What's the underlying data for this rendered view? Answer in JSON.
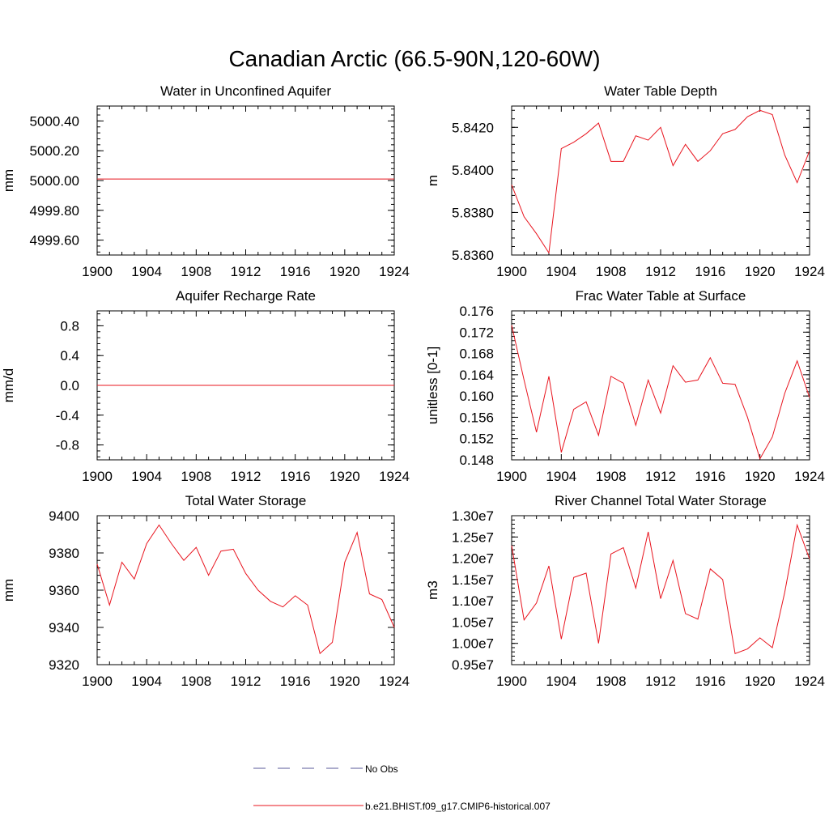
{
  "figure": {
    "title": "Canadian Arctic (66.5-90N,120-60W)"
  },
  "legend": {
    "items": [
      {
        "label": "No Obs",
        "style": "dashed",
        "color": "#5a5a9a"
      },
      {
        "label": "b.e21.BHIST.f09_g17.CMIP6-historical.007",
        "style": "solid",
        "color": "#e8141e"
      }
    ]
  },
  "chart_data": [
    {
      "type": "line",
      "title": "Water in Unconfined Aquifer",
      "ylabel": "mm",
      "xlabel": "",
      "xlim": [
        1900,
        1924
      ],
      "ylim": [
        4999.5,
        5000.5
      ],
      "xticks": [
        1900,
        1904,
        1908,
        1912,
        1916,
        1920,
        1924
      ],
      "yticks": [
        4999.6,
        4999.8,
        5000.0,
        5000.2,
        5000.4
      ],
      "ytick_labels": [
        "4999.60",
        "4999.80",
        "5000.00",
        "5000.20",
        "5000.40"
      ],
      "series": [
        {
          "x": [
            1900,
            1924
          ],
          "values": [
            5000.01,
            5000.01
          ]
        }
      ]
    },
    {
      "type": "line",
      "title": "Water Table Depth",
      "ylabel": "m",
      "xlabel": "",
      "xlim": [
        1900,
        1924
      ],
      "ylim": [
        5.836,
        5.843
      ],
      "xticks": [
        1900,
        1904,
        1908,
        1912,
        1916,
        1920,
        1924
      ],
      "yticks": [
        5.836,
        5.838,
        5.84,
        5.842
      ],
      "ytick_labels": [
        "5.8360",
        "5.8380",
        "5.8400",
        "5.8420"
      ],
      "series": [
        {
          "x": [
            1900,
            1901,
            1902,
            1903,
            1904,
            1905,
            1906,
            1907,
            1908,
            1909,
            1910,
            1911,
            1912,
            1913,
            1914,
            1915,
            1916,
            1917,
            1918,
            1919,
            1920,
            1921,
            1922,
            1923,
            1924
          ],
          "values": [
            5.8393,
            5.8378,
            5.837,
            5.8361,
            5.841,
            5.8413,
            5.8417,
            5.8422,
            5.8404,
            5.8404,
            5.8416,
            5.8414,
            5.842,
            5.8402,
            5.8412,
            5.8404,
            5.8409,
            5.8417,
            5.8419,
            5.8425,
            5.8428,
            5.8426,
            5.8407,
            5.8394,
            5.8409
          ]
        }
      ]
    },
    {
      "type": "line",
      "title": "Aquifer Recharge Rate",
      "ylabel": "mm/d",
      "xlabel": "",
      "xlim": [
        1900,
        1924
      ],
      "ylim": [
        -1.0,
        1.0
      ],
      "xticks": [
        1900,
        1904,
        1908,
        1912,
        1916,
        1920,
        1924
      ],
      "yticks": [
        -0.8,
        -0.4,
        0.0,
        0.4,
        0.8
      ],
      "ytick_labels": [
        "-0.8",
        "-0.4",
        "0.0",
        "0.4",
        "0.8"
      ],
      "series": [
        {
          "x": [
            1900,
            1924
          ],
          "values": [
            0.0,
            0.0
          ]
        }
      ]
    },
    {
      "type": "line",
      "title": "Frac Water Table at Surface",
      "ylabel": "unitless [0-1]",
      "xlabel": "",
      "xlim": [
        1900,
        1924
      ],
      "ylim": [
        0.148,
        0.176
      ],
      "xticks": [
        1900,
        1904,
        1908,
        1912,
        1916,
        1920,
        1924
      ],
      "yticks": [
        0.148,
        0.152,
        0.156,
        0.16,
        0.164,
        0.168,
        0.172,
        0.176
      ],
      "ytick_labels": [
        "0.148",
        "0.152",
        "0.156",
        "0.160",
        "0.164",
        "0.168",
        "0.172",
        "0.176"
      ],
      "series": [
        {
          "x": [
            1900,
            1901,
            1902,
            1903,
            1904,
            1905,
            1906,
            1907,
            1908,
            1909,
            1910,
            1911,
            1912,
            1913,
            1914,
            1915,
            1916,
            1917,
            1918,
            1919,
            1920,
            1921,
            1922,
            1923,
            1924
          ],
          "values": [
            0.1733,
            0.163,
            0.1532,
            0.1637,
            0.1494,
            0.1575,
            0.1589,
            0.1526,
            0.1637,
            0.1624,
            0.1545,
            0.163,
            0.1568,
            0.1657,
            0.1626,
            0.163,
            0.1672,
            0.1624,
            0.1622,
            0.156,
            0.1482,
            0.1523,
            0.1605,
            0.1666,
            0.1597
          ]
        }
      ]
    },
    {
      "type": "line",
      "title": "Total Water Storage",
      "ylabel": "mm",
      "xlabel": "",
      "xlim": [
        1900,
        1924
      ],
      "ylim": [
        9320,
        9400
      ],
      "xticks": [
        1900,
        1904,
        1908,
        1912,
        1916,
        1920,
        1924
      ],
      "yticks": [
        9320,
        9340,
        9360,
        9380,
        9400
      ],
      "ytick_labels": [
        "9320",
        "9340",
        "9360",
        "9380",
        "9400"
      ],
      "series": [
        {
          "x": [
            1900,
            1901,
            1902,
            1903,
            1904,
            1905,
            1906,
            1907,
            1908,
            1909,
            1910,
            1911,
            1912,
            1913,
            1914,
            1915,
            1916,
            1917,
            1918,
            1919,
            1920,
            1921,
            1922,
            1923,
            1924
          ],
          "values": [
            9374,
            9352,
            9375,
            9366,
            9385,
            9395,
            9385,
            9376,
            9383,
            9368,
            9381,
            9382,
            9369,
            9360,
            9354,
            9351,
            9357,
            9352,
            9326,
            9332,
            9375,
            9391,
            9358,
            9355,
            9340
          ]
        }
      ]
    },
    {
      "type": "line",
      "title": "River Channel Total Water Storage",
      "ylabel": "m3",
      "xlabel": "",
      "xlim": [
        1900,
        1924
      ],
      "ylim": [
        9500000,
        13000000
      ],
      "xticks": [
        1900,
        1904,
        1908,
        1912,
        1916,
        1920,
        1924
      ],
      "yticks": [
        9500000,
        10000000,
        10500000,
        11000000,
        11500000,
        12000000,
        12500000,
        13000000
      ],
      "ytick_labels": [
        "0.95e7",
        "1.00e7",
        "1.05e7",
        "1.10e7",
        "1.15e7",
        "1.20e7",
        "1.25e7",
        "1.30e7"
      ],
      "series": [
        {
          "x": [
            1900,
            1901,
            1902,
            1903,
            1904,
            1905,
            1906,
            1907,
            1908,
            1909,
            1910,
            1911,
            1912,
            1913,
            1914,
            1915,
            1916,
            1917,
            1918,
            1919,
            1920,
            1921,
            1922,
            1923,
            1924
          ],
          "values": [
            12300000,
            10550000,
            10950000,
            11820000,
            10100000,
            11550000,
            11650000,
            10000000,
            12100000,
            12250000,
            11300000,
            12620000,
            11050000,
            11950000,
            10700000,
            10570000,
            11750000,
            11500000,
            9760000,
            9870000,
            10130000,
            9900000,
            11200000,
            12780000,
            11980000
          ]
        }
      ]
    }
  ]
}
